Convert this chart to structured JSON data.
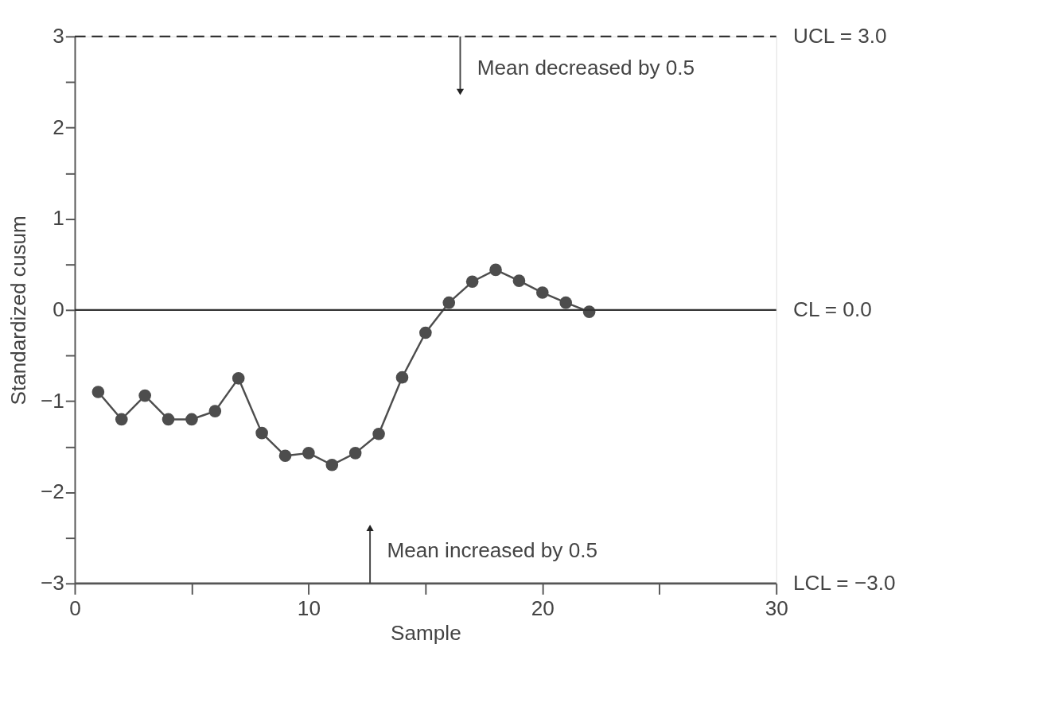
{
  "chart_data": {
    "type": "line",
    "xlabel": "Sample",
    "ylabel": "Standardized cusum",
    "x": [
      1,
      2,
      3,
      4,
      5,
      6,
      7,
      8,
      9,
      10,
      11,
      12,
      13,
      14,
      15,
      16,
      17,
      18,
      19,
      20,
      21,
      22
    ],
    "series": [
      {
        "color": "#4d4d4d",
        "values": [
          -0.9,
          -1.2,
          -0.94,
          -1.2,
          -1.2,
          -1.11,
          -0.75,
          -1.35,
          -1.6,
          -1.57,
          -1.7,
          -1.57,
          -1.36,
          -0.74,
          -0.25,
          0.08,
          0.31,
          0.44,
          0.32,
          0.19,
          0.08,
          -0.02
        ]
      }
    ],
    "xlim": [
      0,
      30
    ],
    "ylim": [
      -3,
      3
    ],
    "xticks": [
      0,
      {
        "value": 5,
        "label": null
      },
      10,
      {
        "value": 15,
        "label": null
      },
      20,
      {
        "value": 25,
        "label": null
      },
      30
    ],
    "yticks": [
      -3,
      {
        "value": -2.5,
        "label": null
      },
      -2,
      {
        "value": -1.5,
        "label": null
      },
      -1,
      {
        "value": -0.5,
        "label": null
      },
      0,
      {
        "value": 0.5,
        "label": null
      },
      1,
      {
        "value": 1.5,
        "label": null
      },
      2,
      {
        "value": 2.5,
        "label": null
      },
      3
    ],
    "ref_lines": [
      {
        "axis": "y",
        "value": 3,
        "label": "UCL = 3.0",
        "color": "#333333",
        "line_style": "dashed"
      },
      {
        "axis": "y",
        "value": 0,
        "label": "CL = 0.0",
        "color": "#333333",
        "line_style": "solid"
      },
      {
        "axis": "y",
        "value": -3,
        "label": "LCL = −3.0",
        "color": "#555555",
        "line_style": "solid"
      }
    ],
    "annotations": [
      "Mean decreased by 0.5",
      "Mean increased by 0.5"
    ],
    "marker": "circle",
    "line_style": "solid",
    "grid": false
  }
}
